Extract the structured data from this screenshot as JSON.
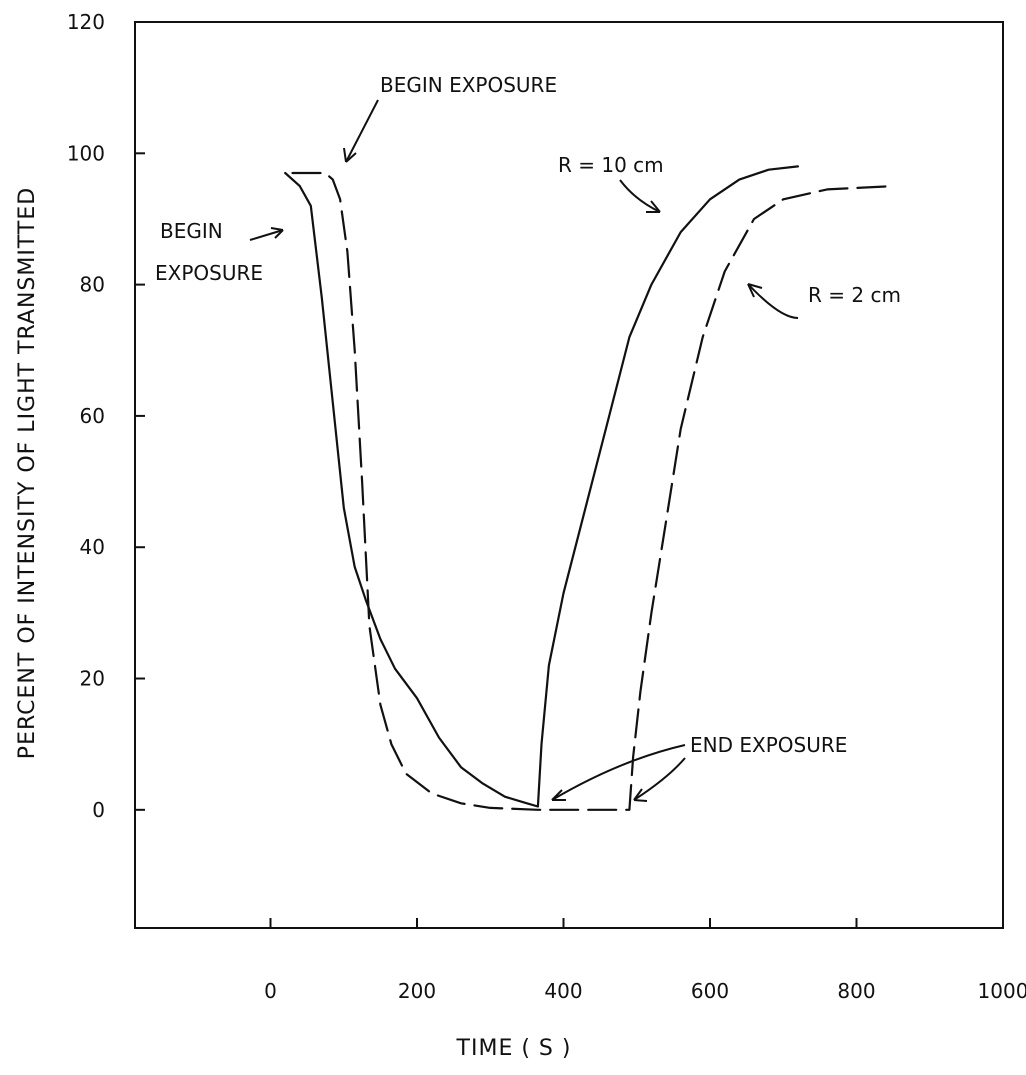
{
  "chart_data": {
    "type": "line",
    "title": "",
    "xlabel": "TIME ( S )",
    "ylabel": "PERCENT OF INTENSITY OF LIGHT TRANSMITTED",
    "xlim": [
      -185,
      1000
    ],
    "ylim": [
      -18,
      120
    ],
    "xticks": [
      0,
      200,
      400,
      600,
      800,
      1000
    ],
    "yticks": [
      0,
      20,
      40,
      60,
      80,
      100,
      120
    ],
    "grid": false,
    "legend": "none",
    "series": [
      {
        "name": "R = 10cm",
        "line_style": "solid",
        "points": [
          [
            20,
            97
          ],
          [
            40,
            95
          ],
          [
            55,
            92
          ],
          [
            70,
            78
          ],
          [
            85,
            62
          ],
          [
            100,
            46
          ],
          [
            115,
            37
          ],
          [
            130,
            32
          ],
          [
            150,
            26
          ],
          [
            170,
            21.5
          ],
          [
            200,
            17
          ],
          [
            230,
            11
          ],
          [
            260,
            6.5
          ],
          [
            290,
            4
          ],
          [
            320,
            2
          ],
          [
            350,
            1
          ],
          [
            365,
            0.5
          ],
          [
            370,
            10
          ],
          [
            380,
            22
          ],
          [
            400,
            33
          ],
          [
            430,
            46
          ],
          [
            460,
            59
          ],
          [
            490,
            72
          ],
          [
            520,
            80
          ],
          [
            560,
            88
          ],
          [
            600,
            93
          ],
          [
            640,
            96
          ],
          [
            680,
            97.5
          ],
          [
            720,
            98
          ]
        ]
      },
      {
        "name": "R = 2 cm",
        "line_style": "dashed",
        "points": [
          [
            30,
            97
          ],
          [
            75,
            97
          ],
          [
            85,
            96
          ],
          [
            95,
            93
          ],
          [
            105,
            85
          ],
          [
            115,
            70
          ],
          [
            125,
            50
          ],
          [
            135,
            28
          ],
          [
            150,
            16
          ],
          [
            165,
            10
          ],
          [
            185,
            5.5
          ],
          [
            220,
            2.5
          ],
          [
            260,
            1
          ],
          [
            300,
            0.3
          ],
          [
            365,
            0
          ],
          [
            420,
            0
          ],
          [
            490,
            0
          ],
          [
            495,
            8
          ],
          [
            505,
            18
          ],
          [
            520,
            30
          ],
          [
            540,
            44
          ],
          [
            560,
            58
          ],
          [
            590,
            72
          ],
          [
            620,
            82
          ],
          [
            660,
            90
          ],
          [
            700,
            93
          ],
          [
            760,
            94.5
          ],
          [
            850,
            95
          ]
        ]
      }
    ],
    "annotations": {
      "begin_exposure_top": "BEGIN EXPOSURE",
      "begin_exposure_left": [
        "BEGIN",
        "EXPOSURE"
      ],
      "end_exposure": "END EXPOSURE",
      "r10": "R  =  10 cm",
      "r2": "R =  2  cm"
    }
  }
}
